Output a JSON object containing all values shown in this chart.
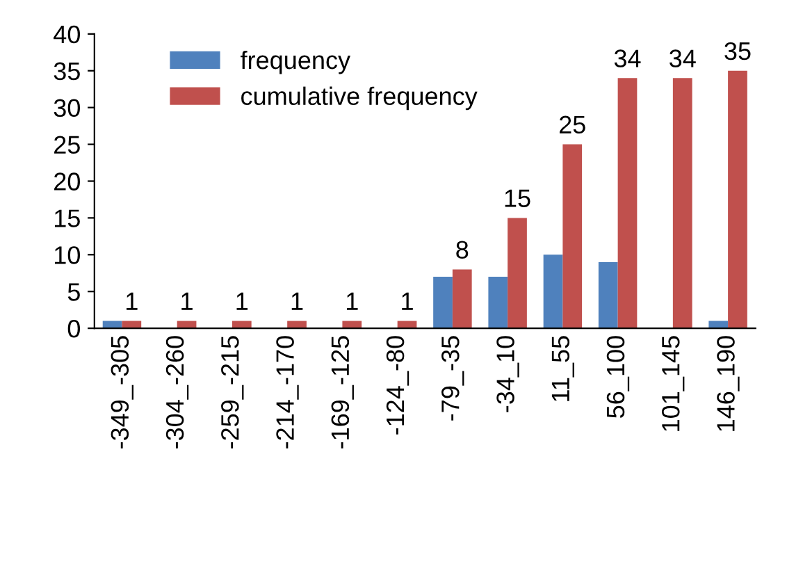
{
  "chart_data": {
    "type": "bar",
    "categories": [
      "-349_-305",
      "-304_-260",
      "-259_-215",
      "-214_-170",
      "-169_-125",
      "-124_-80",
      "-79_-35",
      "-34_10",
      "11_55",
      "56_100",
      "101_145",
      "146_190"
    ],
    "series": [
      {
        "name": "frequency",
        "color": "#4f81bd",
        "values": [
          1,
          0,
          0,
          0,
          0,
          0,
          7,
          7,
          10,
          9,
          0,
          1
        ]
      },
      {
        "name": "cumulative frequency",
        "color": "#c0504d",
        "values": [
          1,
          1,
          1,
          1,
          1,
          1,
          8,
          15,
          25,
          34,
          34,
          35
        ],
        "value_labels": [
          "1",
          "1",
          "1",
          "1",
          "1",
          "1",
          "8",
          "15",
          "25",
          "34",
          "34",
          "35"
        ]
      }
    ],
    "ylim": [
      0,
      40
    ],
    "yticks": [
      0,
      5,
      10,
      15,
      20,
      25,
      30,
      35,
      40
    ],
    "grid": false,
    "legend": "top left"
  }
}
